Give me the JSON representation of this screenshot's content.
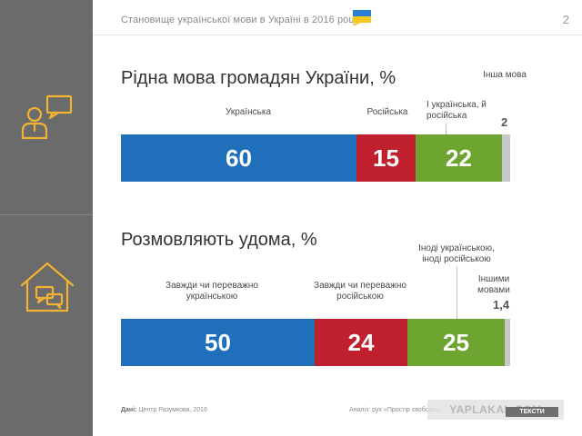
{
  "header": {
    "title": "Становище української мови в Україні в 2016 році",
    "page_number": "2"
  },
  "colors": {
    "ukrainian": "#1f6fba",
    "russian": "#c0202e",
    "both": "#6ea531",
    "other": "#c8c8c8",
    "sidebar": "#6b6b6b",
    "icon": "#f2b233"
  },
  "icons": {
    "person_speech": "person-speech-icon",
    "home_speech": "home-speech-icon",
    "flag": "ukraine-flag-speech-icon"
  },
  "chart_data": [
    {
      "type": "bar",
      "orientation": "horizontal-stacked",
      "title": "Рідна мова громадян України, %",
      "series": [
        {
          "name": "Українська",
          "value": 60,
          "label": "60",
          "color": "#1f6fba"
        },
        {
          "name": "Російська",
          "value": 15,
          "label": "15",
          "color": "#c0202e"
        },
        {
          "name": "І українська, й російська",
          "value": 22,
          "label": "22",
          "color": "#6ea531"
        },
        {
          "name": "Інша мова",
          "value": 2,
          "label": "2",
          "color": "#c8c8c8"
        }
      ]
    },
    {
      "type": "bar",
      "orientation": "horizontal-stacked",
      "title": "Розмовляють удома, %",
      "series": [
        {
          "name": "Завжди чи переважно українською",
          "value": 50,
          "label": "50",
          "color": "#1f6fba"
        },
        {
          "name": "Завжди чи переважно російською",
          "value": 24,
          "label": "24",
          "color": "#c0202e"
        },
        {
          "name": "Іноді українською, іноді російською",
          "value": 25,
          "label": "25",
          "color": "#6ea531"
        },
        {
          "name": "Іншими мовами",
          "value": 1.4,
          "label": "1,4",
          "color": "#c8c8c8"
        }
      ]
    }
  ],
  "footer": {
    "source_label": "Дані:",
    "source_text": "Центр Разумкова, 2016",
    "analysis_text": "Аналіз: рух «Простір свободи»",
    "watermark": "YAPLAKAL.COM",
    "tag": "ТЕКСТИ"
  }
}
